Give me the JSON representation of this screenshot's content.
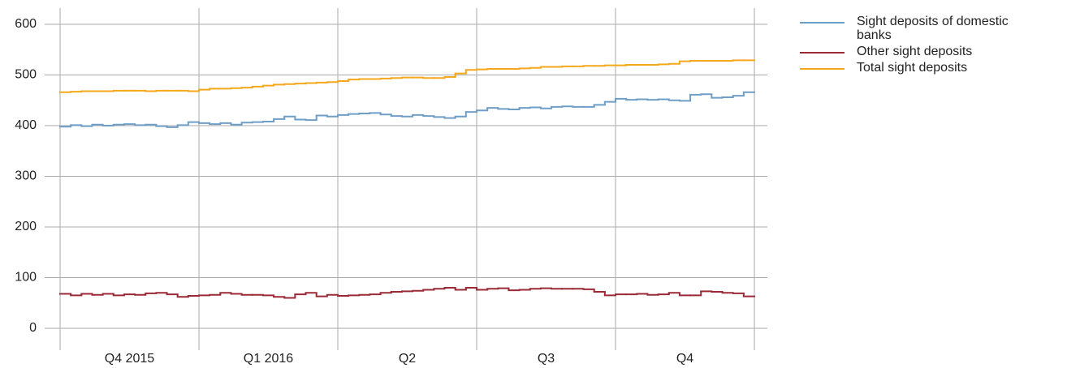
{
  "chart_data": {
    "type": "step",
    "categories": [
      "Q4 2015",
      "Q1 2016",
      "Q2",
      "Q3",
      "Q4"
    ],
    "ylim": [
      0,
      600
    ],
    "yticks": [
      0,
      100,
      200,
      300,
      400,
      500,
      600
    ],
    "grid": true,
    "series": [
      {
        "name": "Sight deposits of domestic banks",
        "color": "#6f9ec7",
        "values": [
          [
            398,
            401,
            399,
            402,
            400,
            402,
            403,
            401,
            402,
            399,
            397,
            401,
            407
          ],
          [
            405,
            403,
            405,
            402,
            406,
            407,
            408,
            413,
            418,
            412,
            411,
            420,
            418
          ],
          [
            421,
            423,
            424,
            425,
            422,
            419,
            418,
            421,
            419,
            417,
            415,
            418,
            427
          ],
          [
            430,
            435,
            433,
            432,
            435,
            436,
            434,
            437,
            438,
            437,
            437,
            441,
            447
          ],
          [
            453,
            451,
            452,
            451,
            452,
            450,
            449,
            461,
            462,
            455,
            456,
            459,
            466
          ]
        ]
      },
      {
        "name": "Other sight deposits",
        "color": "#9b2a37",
        "values": [
          [
            68,
            65,
            68,
            66,
            68,
            65,
            67,
            66,
            69,
            70,
            67,
            62,
            64
          ],
          [
            65,
            66,
            70,
            68,
            66,
            66,
            65,
            62,
            60,
            67,
            70,
            63,
            66
          ],
          [
            64,
            65,
            66,
            67,
            70,
            72,
            73,
            74,
            76,
            78,
            80,
            76,
            80
          ],
          [
            76,
            78,
            79,
            75,
            76,
            78,
            79,
            78,
            78,
            78,
            77,
            72,
            65
          ],
          [
            67,
            67,
            68,
            66,
            67,
            70,
            65,
            65,
            73,
            72,
            70,
            69,
            63
          ]
        ]
      },
      {
        "name": "Total sight deposits",
        "color": "#f5a81c",
        "values": [
          [
            466,
            467,
            468,
            468,
            468,
            469,
            469,
            469,
            468,
            469,
            469,
            469,
            468
          ],
          [
            471,
            473,
            473,
            474,
            475,
            477,
            479,
            481,
            482,
            483,
            484,
            485,
            486
          ],
          [
            488,
            491,
            492,
            492,
            493,
            494,
            495,
            495,
            494,
            494,
            496,
            503,
            510
          ],
          [
            511,
            512,
            512,
            512,
            513,
            514,
            516,
            516,
            517,
            517,
            518,
            518,
            519
          ],
          [
            519,
            520,
            520,
            520,
            521,
            522,
            527,
            528,
            528,
            528,
            528,
            529,
            529
          ]
        ]
      }
    ]
  }
}
